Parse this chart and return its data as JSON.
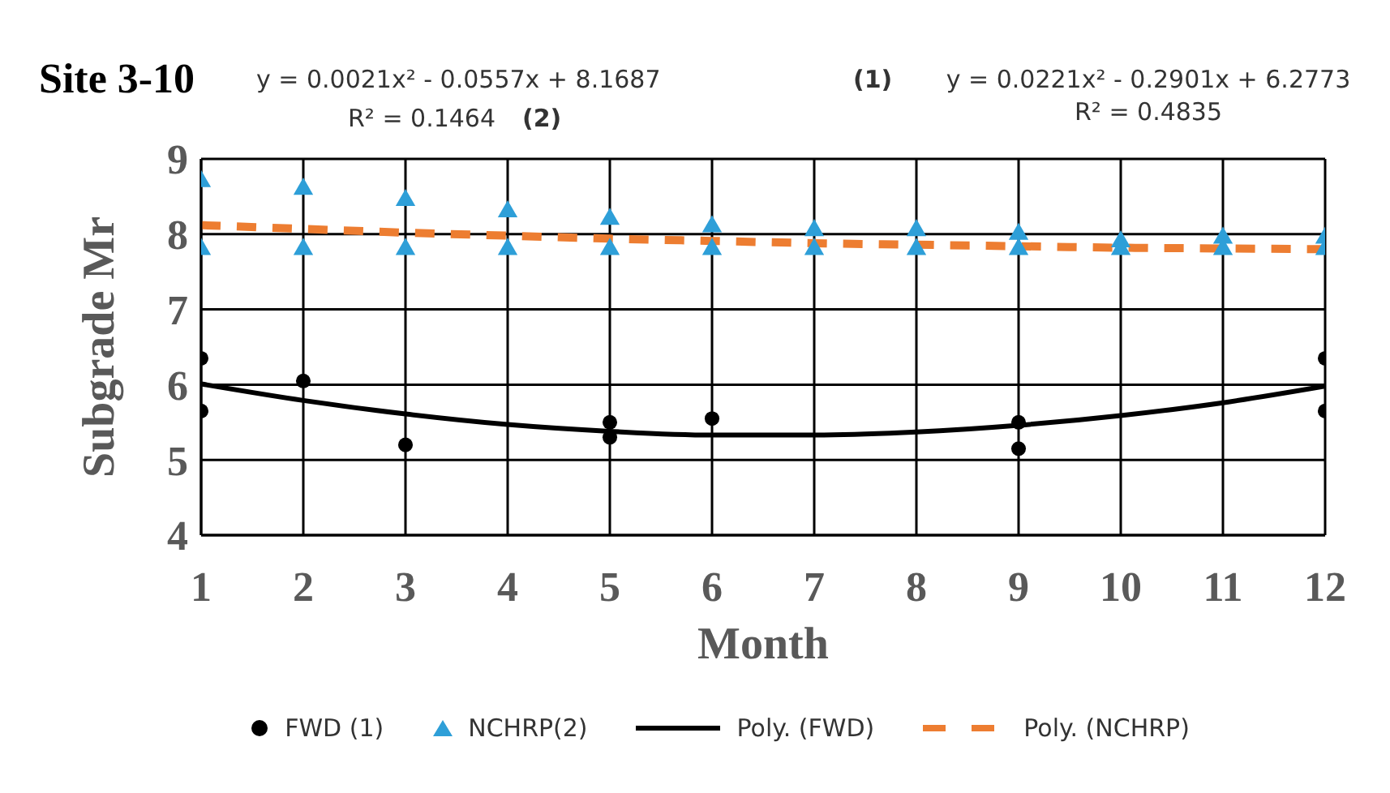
{
  "chart_data": {
    "type": "scatter",
    "title": "Site 3-10",
    "xlabel": "Month",
    "ylabel": "Subgrade Mr",
    "annotations": [
      "y = 0.0021x² - 0.0557x + 8.1687",
      "R² = 0.1464",
      "(2)",
      "(1)",
      "y = 0.0221x² - 0.2901x + 6.2773",
      "R² = 0.4835"
    ],
    "xlim": [
      1,
      12
    ],
    "xticks": [
      1,
      2,
      3,
      4,
      5,
      6,
      7,
      8,
      9,
      10,
      11,
      12
    ],
    "ylim": [
      4,
      9
    ],
    "yticks": [
      4,
      5,
      6,
      7,
      8,
      9
    ],
    "grid": true,
    "legend": "bottom",
    "series": [
      {
        "name": "FWD (1)",
        "marker": "circle",
        "color": "#000000",
        "x": [
          1,
          1,
          2,
          3,
          5,
          5,
          6,
          9,
          9,
          12,
          12
        ],
        "values": [
          6.35,
          5.65,
          6.05,
          5.2,
          5.5,
          5.3,
          5.55,
          5.5,
          5.15,
          6.35,
          5.65
        ]
      },
      {
        "name": "NCHRP(2)",
        "marker": "triangle",
        "color": "#2e9fd8",
        "x": [
          1,
          1,
          2,
          2,
          3,
          3,
          4,
          4,
          5,
          5,
          6,
          6,
          7,
          7,
          8,
          8,
          9,
          9,
          10,
          10,
          11,
          11,
          12,
          12
        ],
        "values": [
          8.7,
          7.8,
          8.6,
          7.8,
          8.45,
          7.8,
          8.3,
          7.8,
          8.2,
          7.8,
          8.1,
          7.8,
          8.05,
          7.8,
          8.05,
          7.8,
          8.0,
          7.8,
          7.9,
          7.8,
          7.95,
          7.8,
          7.95,
          7.8
        ]
      },
      {
        "name": "Poly. (FWD)",
        "type": "line",
        "marker": "none",
        "line_style": "solid",
        "color": "#000000",
        "x": [
          1,
          2,
          3,
          4,
          5,
          6,
          7,
          8,
          9,
          10,
          11,
          12
        ],
        "values": [
          6.01,
          5.79,
          5.61,
          5.47,
          5.38,
          5.33,
          5.33,
          5.37,
          5.46,
          5.59,
          5.76,
          5.98
        ]
      },
      {
        "name": "Poly. (NCHRP)",
        "type": "line",
        "marker": "none",
        "line_style": "dashed",
        "color": "#ed7d31",
        "x": [
          1,
          2,
          3,
          4,
          5,
          6,
          7,
          8,
          9,
          10,
          11,
          12
        ],
        "values": [
          8.12,
          8.07,
          8.02,
          7.98,
          7.94,
          7.91,
          7.88,
          7.86,
          7.84,
          7.82,
          7.81,
          7.8
        ]
      }
    ]
  }
}
